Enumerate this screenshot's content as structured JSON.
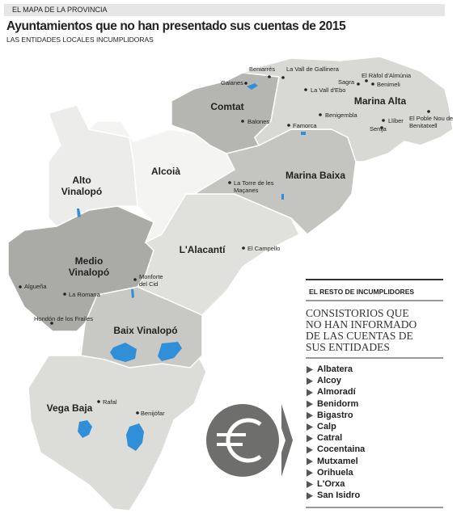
{
  "header": {
    "kicker": "EL MAPA DE LA PROVINCIA",
    "title": "Ayuntamientos que no han presentado sus cuentas de 2015",
    "subtitle": "LAS ENTIDADES LOCALES INCUMPLIDORAS"
  },
  "map": {
    "regions": [
      "Alto Vinalopó",
      "Alcoià",
      "Comtat",
      "Marina Alta",
      "Marina Baixa",
      "L'Alacantí",
      "Medio Vinalopó",
      "Baix Vinalopó",
      "Vega Baja"
    ],
    "towns": [
      "Beniarrés",
      "La Vall de Gallinera",
      "Gaianes",
      "El Ràfol d'Almúnia",
      "Sagra",
      "Benimeli",
      "La Vall d'Ebo",
      "Balones",
      "Benigembla",
      "Famorca",
      "Llíber",
      "El Poble Nou de Benitatxell",
      "Senija",
      "La Torre de les Maçanes",
      "El Campello",
      "Algueña",
      "La Romana",
      "Monforte del Cid",
      "Hondón de los Frailes",
      "Rafal",
      "Benijófar"
    ]
  },
  "sidebar": {
    "heading": "EL RESTO DE INCUMPLIDORES",
    "subheading": "CONSISTORIOS QUE NO HAN INFORMADO DE LAS CUENTAS DE SUS ENTIDADES",
    "items": [
      "Albatera",
      "Alcoy",
      "Almoradí",
      "Benidorm",
      "Bigastro",
      "Calp",
      "Catral",
      "Cocentaina",
      "Mutxamel",
      "Orihuela",
      "L'Orxa",
      "San Isidro"
    ]
  }
}
